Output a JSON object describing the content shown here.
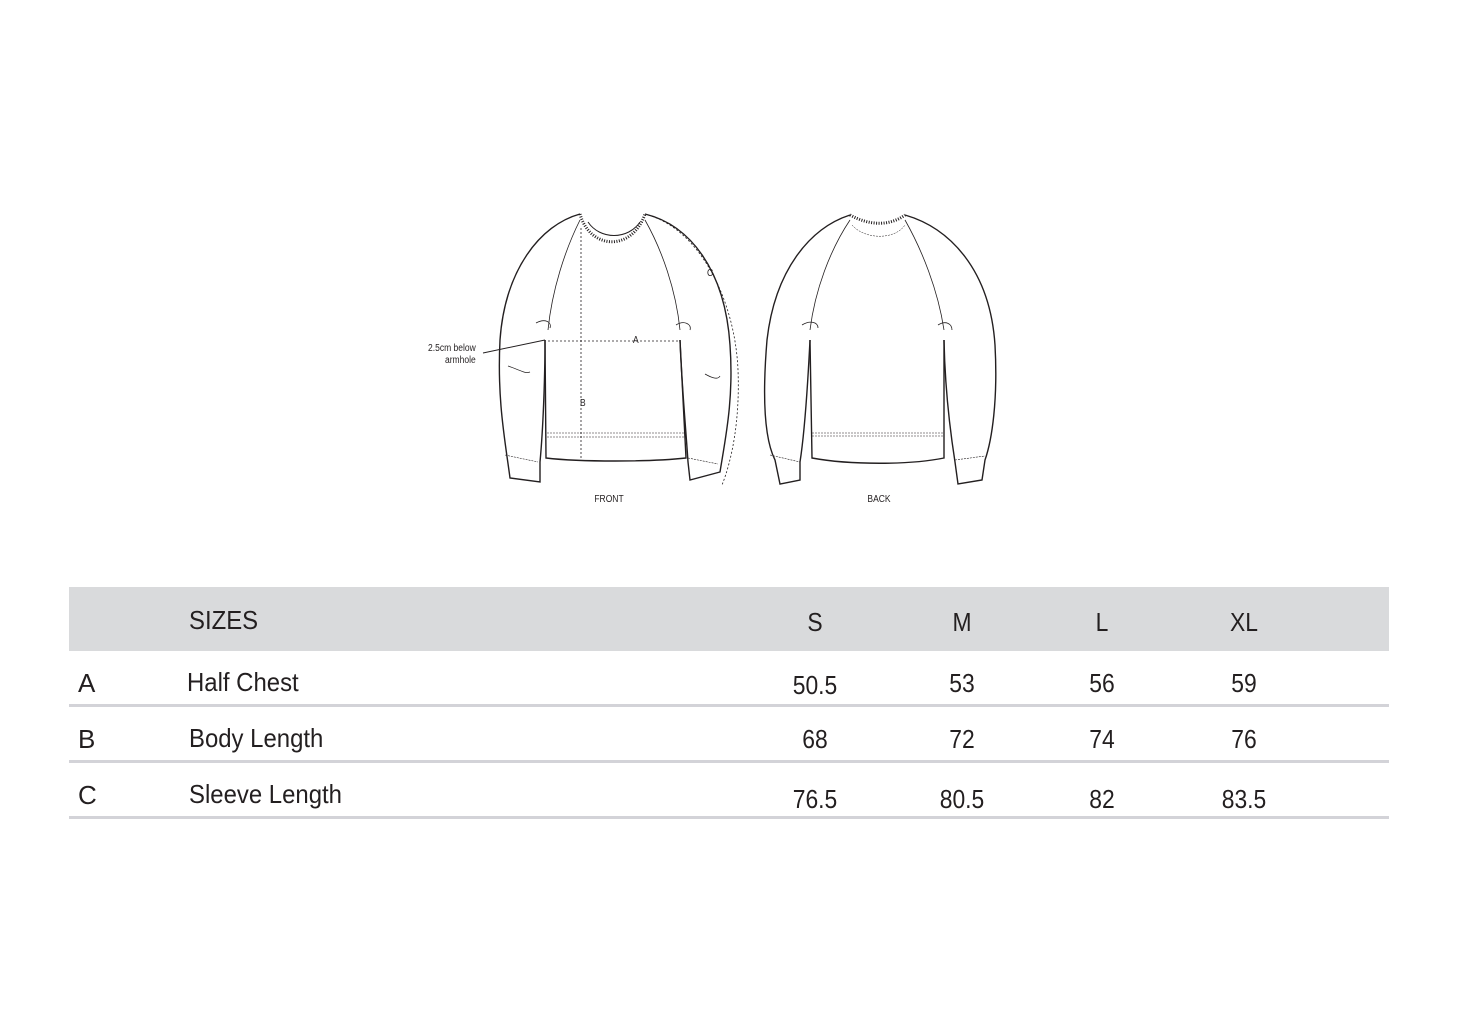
{
  "diagram": {
    "front_label": "FRONT",
    "back_label": "BACK",
    "annotation_armhole_line1": "2.5cm below",
    "annotation_armhole_line2": "armhole",
    "measure_a": "A",
    "measure_b": "B",
    "measure_c": "C"
  },
  "table": {
    "header": {
      "label": "SIZES",
      "sizes": [
        "S",
        "M",
        "L",
        "XL"
      ]
    },
    "rows": [
      {
        "key": "A",
        "label": "Half Chest",
        "values": [
          "50.5",
          "53",
          "56",
          "59"
        ]
      },
      {
        "key": "B",
        "label": "Body Length",
        "values": [
          "68",
          "72",
          "74",
          "76"
        ]
      },
      {
        "key": "C",
        "label": "Sleeve Length",
        "values": [
          "76.5",
          "80.5",
          "82",
          "83.5"
        ]
      }
    ]
  },
  "colors": {
    "header_band": "#d9dadc",
    "row_divider": "#d3d3d8",
    "text": "#231f20"
  }
}
